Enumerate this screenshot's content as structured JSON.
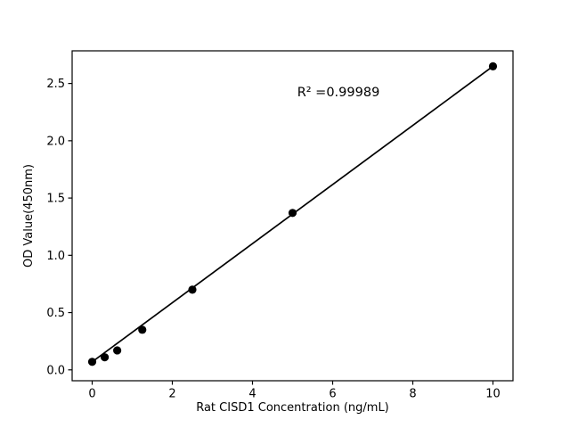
{
  "chart_data": {
    "type": "scatter",
    "title": "",
    "xlabel": "Rat CISD1 Concentration (ng/mL)",
    "ylabel": "OD Value(450nm)",
    "annotation": "R² =0.99989",
    "x": [
      0,
      0.3125,
      0.625,
      1.25,
      2.5,
      5,
      10
    ],
    "y": [
      0.07,
      0.11,
      0.17,
      0.35,
      0.7,
      1.37,
      2.65
    ],
    "xticks": [
      {
        "value": 0,
        "label": "0"
      },
      {
        "value": 2,
        "label": "2"
      },
      {
        "value": 4,
        "label": "4"
      },
      {
        "value": 6,
        "label": "6"
      },
      {
        "value": 8,
        "label": "8"
      },
      {
        "value": 10,
        "label": "10"
      }
    ],
    "yticks": [
      {
        "value": 0.0,
        "label": "0.0"
      },
      {
        "value": 0.5,
        "label": "0.5"
      },
      {
        "value": 1.0,
        "label": "1.0"
      },
      {
        "value": 1.5,
        "label": "1.5"
      },
      {
        "value": 2.0,
        "label": "2.0"
      },
      {
        "value": 2.5,
        "label": "2.5"
      }
    ],
    "xlim": [
      -0.5,
      10.5
    ],
    "ylim": [
      -0.095,
      2.785
    ],
    "grid": false,
    "legend": null,
    "colors": {
      "marker": "#000000",
      "line": "#000000",
      "axis": "#000000",
      "text": "#000000",
      "background": "#ffffff"
    }
  }
}
